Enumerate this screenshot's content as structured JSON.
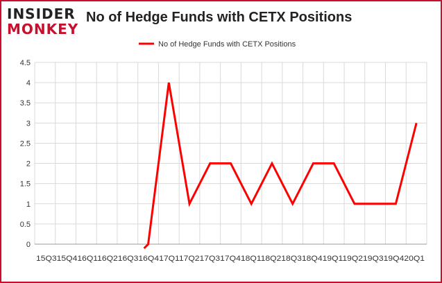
{
  "brand": {
    "line1": "INSIDER",
    "line2": "MONKEY"
  },
  "chart_data": {
    "type": "line",
    "title": "No of Hedge Funds with CETX Positions",
    "xlabel": "",
    "ylabel": "",
    "categories": [
      "2015Q3",
      "2015Q4",
      "2016Q1",
      "2016Q2",
      "2016Q3",
      "2016Q4",
      "2017Q1",
      "2017Q2",
      "2017Q3",
      "2017Q4",
      "2018Q1",
      "2018Q2",
      "2018Q3",
      "2018Q4",
      "2019Q1",
      "2019Q2",
      "2019Q3",
      "2019Q4",
      "2020Q1"
    ],
    "x_tick_text": "15Q315Q416Q116Q216Q316Q417Q117Q217Q317Q418Q118Q218Q318Q419Q119Q219Q319Q420Q1",
    "series": [
      {
        "name": "No of Hedge Funds with CETX Positions",
        "values": [
          null,
          null,
          null,
          null,
          null,
          0,
          4,
          1,
          2,
          2,
          1,
          2,
          1,
          2,
          2,
          1,
          1,
          1,
          3
        ]
      }
    ],
    "ylim": [
      0,
      4.5
    ],
    "yticks": [
      "0",
      "0.5",
      "1",
      "1.5",
      "2",
      "2.5",
      "3",
      "3.5",
      "4",
      "4.5"
    ],
    "grid": true,
    "legend": "top-center",
    "colors": {
      "series": "#ff0000",
      "grid": "#d9d9d9",
      "axis": "#999999"
    }
  }
}
